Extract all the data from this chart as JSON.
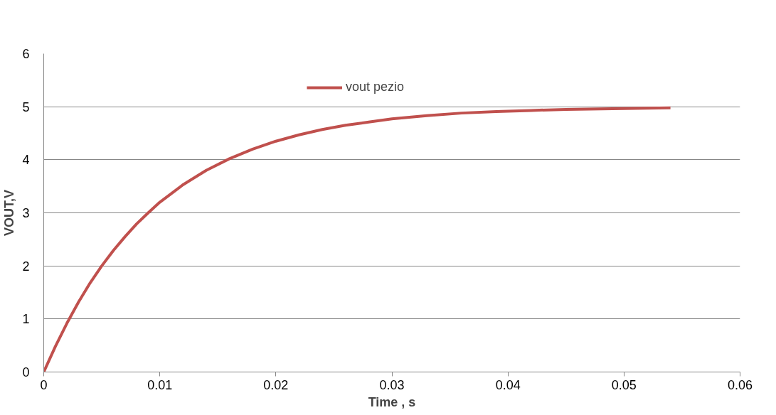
{
  "chart_data": {
    "type": "line",
    "xlabel": "Time , s",
    "ylabel": "VOUT,V",
    "x": [
      0,
      0.001,
      0.002,
      0.003,
      0.004,
      0.005,
      0.006,
      0.007,
      0.008,
      0.009,
      0.01,
      0.012,
      0.014,
      0.016,
      0.018,
      0.02,
      0.022,
      0.024,
      0.026,
      0.028,
      0.03,
      0.033,
      0.036,
      0.039,
      0.042,
      0.045,
      0.048,
      0.051,
      0.054
    ],
    "series": [
      {
        "name": "vout pezio",
        "color": "#c0504d",
        "values": [
          0,
          0.48,
          0.92,
          1.32,
          1.68,
          2.0,
          2.29,
          2.55,
          2.79,
          3.0,
          3.2,
          3.53,
          3.8,
          4.02,
          4.2,
          4.35,
          4.47,
          4.57,
          4.65,
          4.71,
          4.77,
          4.83,
          4.88,
          4.91,
          4.93,
          4.95,
          4.96,
          4.97,
          4.98
        ]
      }
    ],
    "xlim": [
      0,
      0.06
    ],
    "xticks": [
      0,
      0.01,
      0.02,
      0.03,
      0.04,
      0.05,
      0.06
    ],
    "ylim": [
      0,
      6
    ],
    "yticks": [
      0,
      1,
      2,
      3,
      4,
      5,
      6
    ],
    "grid": "y",
    "legend": "top",
    "marker": "none",
    "line_style": "solid"
  }
}
